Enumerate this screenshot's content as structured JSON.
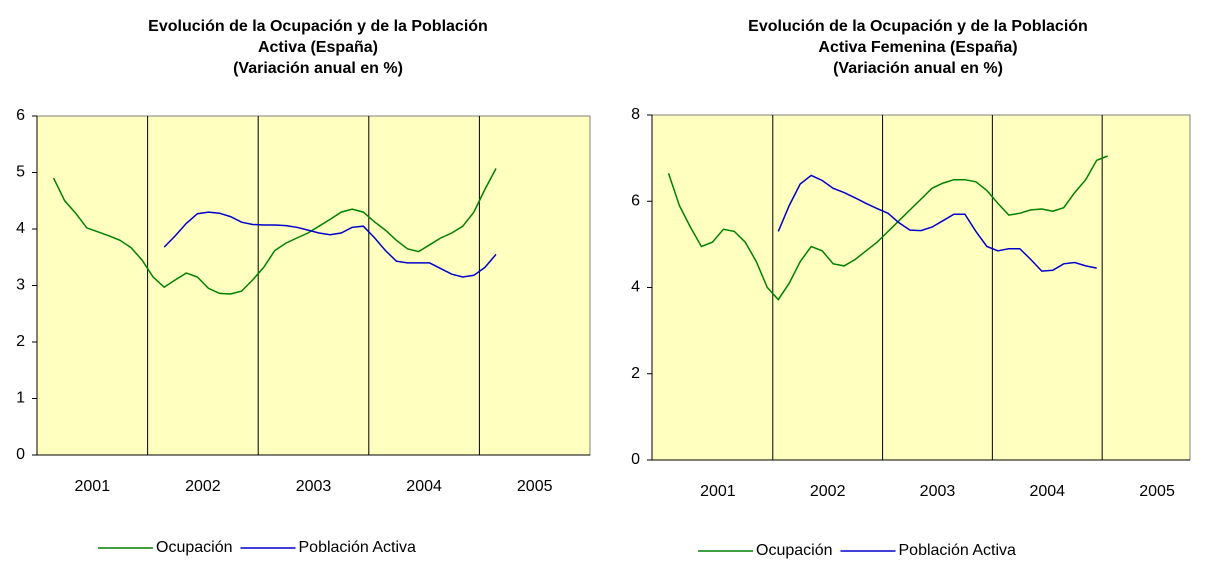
{
  "chart_data": [
    {
      "type": "line",
      "title": [
        "Evolución de la Ocupación y de la Población",
        "Activa (España)",
        "(Variación anual en %)"
      ],
      "x": [
        2000.65,
        2000.75,
        2000.85,
        2000.95,
        2001.05,
        2001.15,
        2001.25,
        2001.35,
        2001.45,
        2001.55,
        2001.65,
        2001.75,
        2001.85,
        2001.95,
        2002.05,
        2002.15,
        2002.25,
        2002.35,
        2002.45,
        2002.55,
        2002.65,
        2002.75,
        2002.85,
        2002.95,
        2003.05,
        2003.15,
        2003.25,
        2003.35,
        2003.45,
        2003.55,
        2003.65,
        2003.75,
        2003.85,
        2003.95,
        2004.05,
        2004.15,
        2004.25,
        2004.35,
        2004.45,
        2004.55,
        2004.65
      ],
      "series": [
        {
          "name": "Ocupación",
          "color": "#008000",
          "values": [
            4.9,
            4.5,
            4.28,
            4.02,
            3.95,
            3.88,
            3.8,
            3.67,
            3.45,
            3.15,
            2.97,
            3.1,
            3.22,
            3.15,
            2.95,
            2.86,
            2.85,
            2.9,
            3.1,
            3.32,
            3.62,
            3.75,
            3.84,
            3.93,
            4.05,
            4.17,
            4.3,
            4.35,
            4.3,
            4.13,
            3.98,
            3.8,
            3.65,
            3.6,
            3.72,
            3.84,
            3.93,
            4.05,
            4.3,
            4.7,
            5.07
          ]
        },
        {
          "name": "Población Activa",
          "color": "#0000cc",
          "values": [
            null,
            null,
            null,
            null,
            null,
            null,
            null,
            null,
            null,
            null,
            3.68,
            3.88,
            4.1,
            4.27,
            4.3,
            4.28,
            4.22,
            4.12,
            4.08,
            4.07,
            4.07,
            4.06,
            4.03,
            3.98,
            3.93,
            3.9,
            3.93,
            4.03,
            4.05,
            3.85,
            3.62,
            3.43,
            3.4,
            3.4,
            3.4,
            3.3,
            3.2,
            3.15,
            3.18,
            3.32,
            3.55
          ]
        }
      ],
      "xlim": [
        2000.5,
        2005.5
      ],
      "xticks": [
        2001,
        2002,
        2003,
        2004,
        2005
      ],
      "ylim": [
        0,
        6
      ],
      "yticks": [
        0,
        1,
        2,
        3,
        4,
        5,
        6
      ],
      "legend": "bottom"
    },
    {
      "type": "line",
      "title": [
        "Evolución de la Ocupación y de la Población",
        "Activa Femenina (España)",
        "(Variación anual en %)"
      ],
      "x": [
        2000.55,
        2000.65,
        2000.75,
        2000.85,
        2000.95,
        2001.05,
        2001.15,
        2001.25,
        2001.35,
        2001.45,
        2001.55,
        2001.65,
        2001.75,
        2001.85,
        2001.95,
        2002.05,
        2002.15,
        2002.25,
        2002.35,
        2002.45,
        2002.55,
        2002.65,
        2002.75,
        2002.85,
        2002.95,
        2003.05,
        2003.15,
        2003.25,
        2003.35,
        2003.45,
        2003.55,
        2003.65,
        2003.75,
        2003.85,
        2003.95,
        2004.05,
        2004.15,
        2004.25,
        2004.35,
        2004.45,
        2004.55
      ],
      "series": [
        {
          "name": "Ocupación",
          "color": "#008000",
          "values": [
            6.65,
            5.9,
            5.4,
            4.95,
            5.05,
            5.35,
            5.3,
            5.05,
            4.6,
            4.0,
            3.72,
            4.1,
            4.6,
            4.95,
            4.85,
            4.55,
            4.5,
            4.65,
            4.85,
            5.05,
            5.3,
            5.55,
            5.8,
            6.05,
            6.3,
            6.42,
            6.5,
            6.5,
            6.45,
            6.25,
            5.95,
            5.68,
            5.72,
            5.8,
            5.82,
            5.77,
            5.85,
            6.2,
            6.5,
            6.95,
            7.05
          ]
        },
        {
          "name": "Población Activa",
          "color": "#0000cc",
          "values": [
            null,
            null,
            null,
            null,
            null,
            null,
            null,
            null,
            null,
            null,
            5.3,
            5.9,
            6.4,
            6.6,
            6.48,
            6.3,
            6.2,
            6.08,
            5.95,
            5.83,
            5.72,
            5.5,
            5.33,
            5.32,
            5.4,
            5.55,
            5.7,
            5.7,
            5.3,
            4.95,
            4.85,
            4.9,
            4.9,
            4.65,
            4.38,
            4.4,
            4.55,
            4.58,
            4.5,
            4.45,
            null
          ]
        }
      ],
      "xlim": [
        2000.4,
        2005.3
      ],
      "xticks": [
        2001,
        2002,
        2003,
        2004,
        2005
      ],
      "ylim": [
        0,
        8
      ],
      "yticks": [
        0,
        2,
        4,
        6,
        8
      ],
      "legend": "bottom"
    }
  ]
}
